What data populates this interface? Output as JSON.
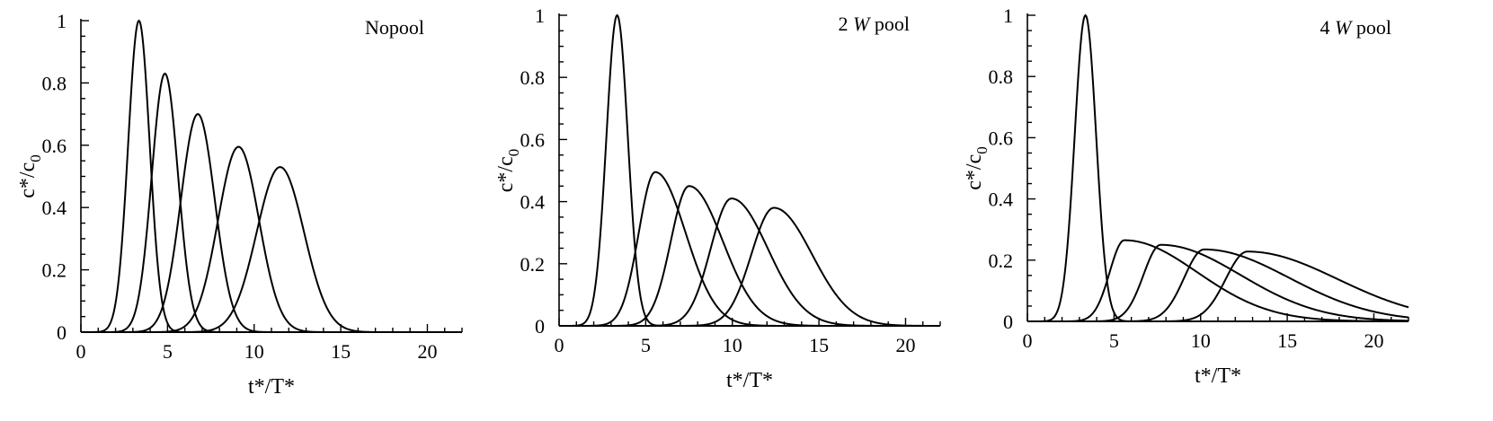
{
  "chart_data": [
    {
      "type": "line",
      "title": {
        "pre": "Nopool",
        "italic": "",
        "post": ""
      },
      "xlabel": "t*/T*",
      "ylabel": {
        "main": "c*/c",
        "sub": "0"
      },
      "xlim": [
        0,
        22
      ],
      "ylim": [
        0,
        1
      ],
      "xticks": [
        0,
        5,
        10,
        15,
        20
      ],
      "yticks": [
        0,
        0.2,
        0.4,
        0.6,
        0.8,
        1
      ],
      "ytick_labels": [
        "0",
        "0.2",
        "0.4",
        "0.6",
        "0.8",
        "1"
      ],
      "series": [
        {
          "peak_x": 3.35,
          "peak_y": 1.0,
          "rise_width": 0.62,
          "fall_width": 0.62
        },
        {
          "peak_x": 4.85,
          "peak_y": 0.83,
          "rise_width": 0.76,
          "fall_width": 0.76
        },
        {
          "peak_x": 6.75,
          "peak_y": 0.7,
          "rise_width": 0.98,
          "fall_width": 0.98
        },
        {
          "peak_x": 9.1,
          "peak_y": 0.595,
          "rise_width": 1.18,
          "fall_width": 1.18
        },
        {
          "peak_x": 11.5,
          "peak_y": 0.53,
          "rise_width": 1.35,
          "fall_width": 1.38
        }
      ]
    },
    {
      "type": "line",
      "title": {
        "pre": "2 ",
        "italic": "W",
        "post": " pool"
      },
      "xlabel": "t*/T*",
      "ylabel": {
        "main": "c*/c",
        "sub": "0"
      },
      "xlim": [
        0,
        22
      ],
      "ylim": [
        0,
        1
      ],
      "xticks": [
        0,
        5,
        10,
        15,
        20
      ],
      "yticks": [
        0,
        0.2,
        0.4,
        0.6,
        0.8,
        1
      ],
      "ytick_labels": [
        "0",
        "0.2",
        "0.4",
        "0.6",
        "0.8",
        "1"
      ],
      "series": [
        {
          "peak_x": 3.35,
          "peak_y": 1.0,
          "rise_width": 0.62,
          "fall_width": 0.62
        },
        {
          "peak_x": 5.55,
          "peak_y": 0.495,
          "rise_width": 0.95,
          "fall_width": 1.75
        },
        {
          "peak_x": 7.5,
          "peak_y": 0.45,
          "rise_width": 1.05,
          "fall_width": 1.95
        },
        {
          "peak_x": 9.95,
          "peak_y": 0.41,
          "rise_width": 1.2,
          "fall_width": 2.1
        },
        {
          "peak_x": 12.4,
          "peak_y": 0.38,
          "rise_width": 1.3,
          "fall_width": 2.2
        }
      ]
    },
    {
      "type": "line",
      "title": {
        "pre": "4 ",
        "italic": "W",
        "post": " pool"
      },
      "xlabel": "t*/T*",
      "ylabel": {
        "main": "c*/c",
        "sub": "0"
      },
      "xlim": [
        0,
        22
      ],
      "ylim": [
        0,
        1
      ],
      "xticks": [
        0,
        5,
        10,
        15,
        20
      ],
      "yticks": [
        0,
        0.2,
        0.4,
        0.6,
        0.8,
        1
      ],
      "ytick_labels": [
        "0",
        "0.2",
        "0.4",
        "0.6",
        "0.8",
        "1"
      ],
      "series": [
        {
          "peak_x": 3.35,
          "peak_y": 1.0,
          "rise_width": 0.62,
          "fall_width": 0.62
        },
        {
          "peak_x": 5.6,
          "peak_y": 0.265,
          "rise_width": 0.85,
          "fall_width": 4.2
        },
        {
          "peak_x": 7.7,
          "peak_y": 0.25,
          "rise_width": 1.0,
          "fall_width": 4.6
        },
        {
          "peak_x": 10.2,
          "peak_y": 0.235,
          "rise_width": 1.15,
          "fall_width": 4.9
        },
        {
          "peak_x": 12.7,
          "peak_y": 0.228,
          "rise_width": 1.25,
          "fall_width": 5.2
        }
      ]
    }
  ]
}
